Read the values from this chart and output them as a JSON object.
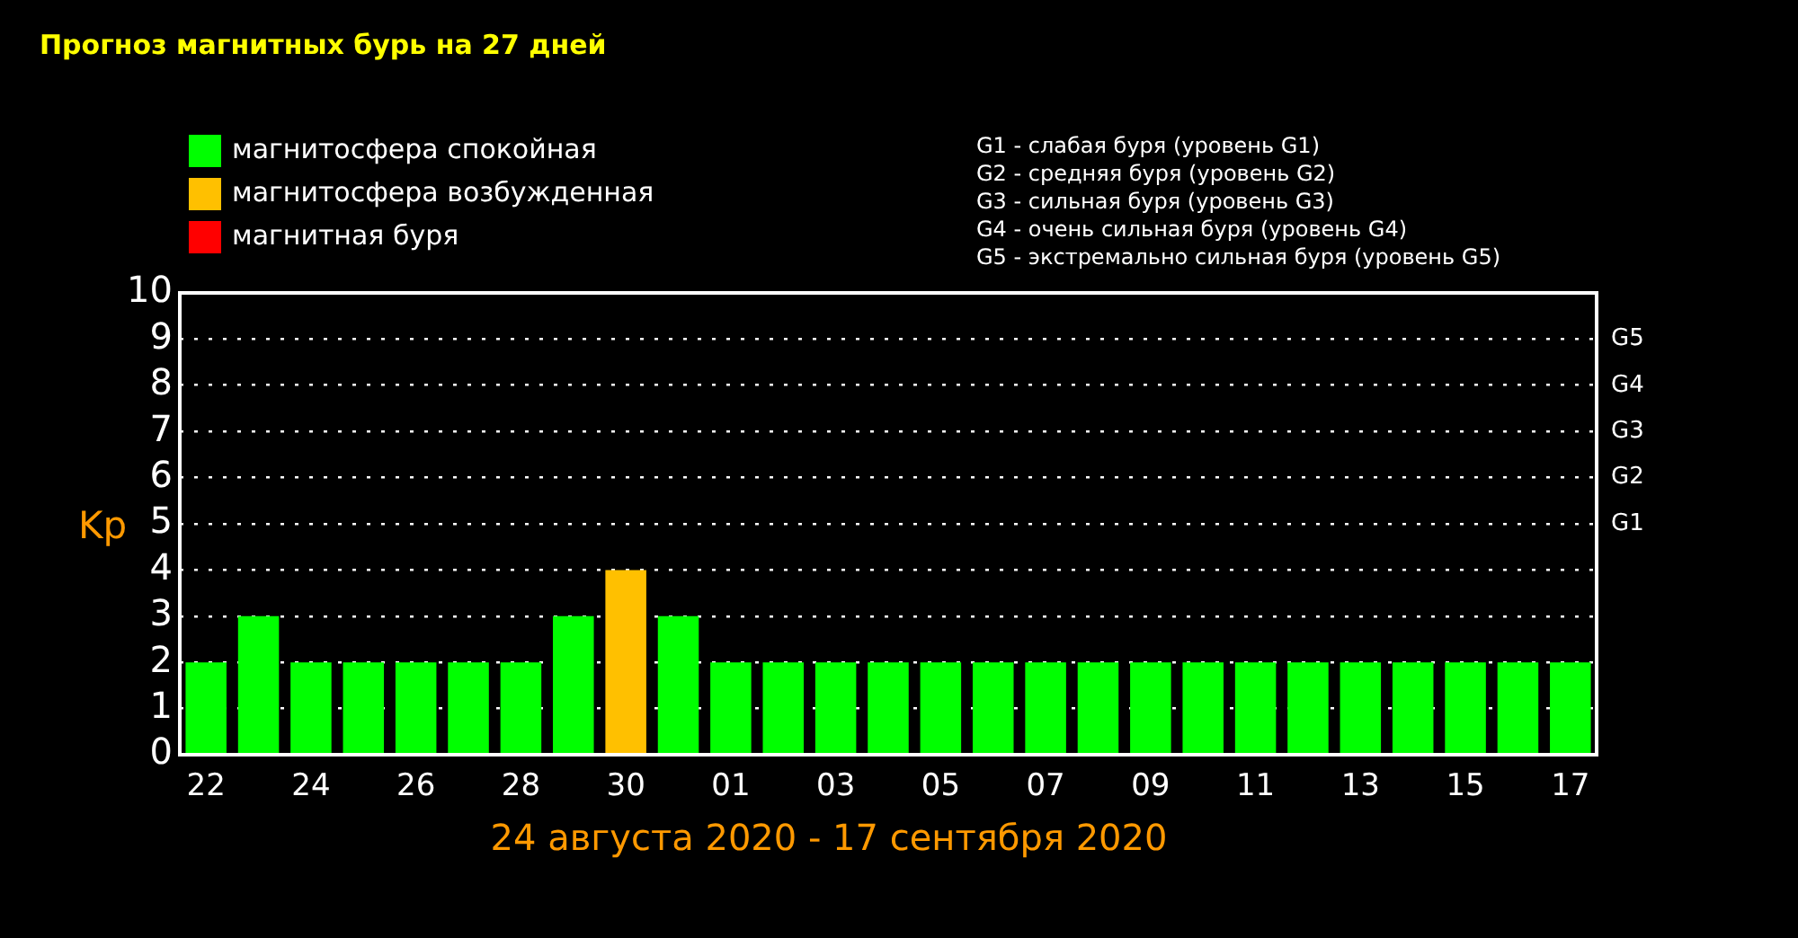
{
  "chart_data": {
    "type": "bar",
    "title": "Прогноз магнитных бурь на 27 дней",
    "xlabel": "24 августа 2020 - 17 сентября 2020",
    "ylabel": "Kp",
    "categories": [
      "22",
      null,
      "24",
      null,
      "26",
      null,
      "28",
      null,
      "30",
      null,
      "01",
      null,
      "03",
      null,
      "05",
      null,
      "07",
      null,
      "09",
      null,
      "11",
      null,
      "13",
      null,
      "15",
      null,
      "17"
    ],
    "stacked": true,
    "series": [
      {
        "name": "магнитосфера спокойная",
        "color": "#00ff00",
        "values": [
          2,
          3,
          2,
          2,
          2,
          2,
          2,
          3,
          null,
          3,
          2,
          2,
          2,
          2,
          2,
          2,
          2,
          2,
          2,
          2,
          2,
          2,
          2,
          2,
          2,
          2,
          2
        ]
      },
      {
        "name": "магнитосфера возбужденная",
        "color": "#ffc000",
        "values": [
          null,
          null,
          null,
          null,
          null,
          null,
          null,
          null,
          4,
          null,
          null,
          null,
          null,
          null,
          null,
          null,
          null,
          null,
          null,
          null,
          null,
          null,
          null,
          null,
          null,
          null,
          null
        ]
      },
      {
        "name": "магнитная буря",
        "color": "#ff0000",
        "values": [
          null,
          null,
          null,
          null,
          null,
          null,
          null,
          null,
          null,
          null,
          null,
          null,
          null,
          null,
          null,
          null,
          null,
          null,
          null,
          null,
          null,
          null,
          null,
          null,
          null,
          null,
          null
        ]
      }
    ],
    "ylim": [
      0,
      10
    ],
    "yticks": [
      0,
      1,
      2,
      3,
      4,
      5,
      6,
      7,
      8,
      9,
      10
    ],
    "grid": "y",
    "legend": "top left",
    "annotations": [
      "G1 - слабая буря (уровень G1)",
      "G2 - средняя буря (уровень G2)",
      "G3 - сильная буря (уровень G3)",
      "G4 - очень сильная буря (уровень G4)",
      "G5 - экстремально сильная буря (уровень G5)",
      "G5",
      "G4",
      "G3",
      "G2",
      "G1"
    ]
  }
}
